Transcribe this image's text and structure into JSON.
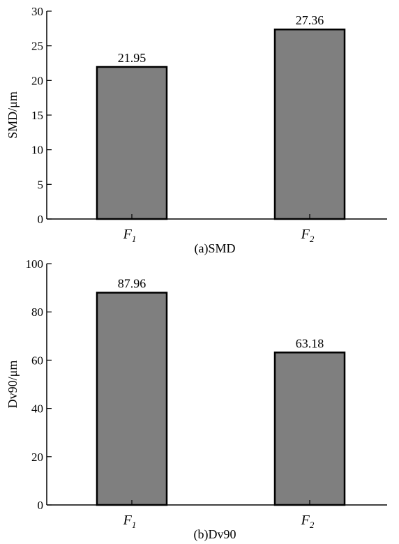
{
  "chart_data": [
    {
      "type": "bar",
      "caption": "(a)SMD",
      "ylabel": "SMD/μm",
      "xlabel": "",
      "ylim": [
        0,
        30
      ],
      "yticks": [
        0,
        5,
        10,
        15,
        20,
        25,
        30
      ],
      "categories": [
        {
          "main": "F",
          "sub": "1"
        },
        {
          "main": "F",
          "sub": "2"
        }
      ],
      "values": [
        21.95,
        27.36
      ],
      "data_labels": [
        "21.95",
        "27.36"
      ],
      "bar_color": "#7f7f7f",
      "grid": false
    },
    {
      "type": "bar",
      "caption": "(b)Dv90",
      "ylabel": "Dv90/μm",
      "xlabel": "",
      "ylim": [
        0,
        100
      ],
      "yticks": [
        0,
        20,
        40,
        60,
        80,
        100
      ],
      "categories": [
        {
          "main": "F",
          "sub": "1"
        },
        {
          "main": "F",
          "sub": "2"
        }
      ],
      "values": [
        87.96,
        63.18
      ],
      "data_labels": [
        "87.96",
        "63.18"
      ],
      "bar_color": "#7f7f7f",
      "grid": false
    }
  ]
}
